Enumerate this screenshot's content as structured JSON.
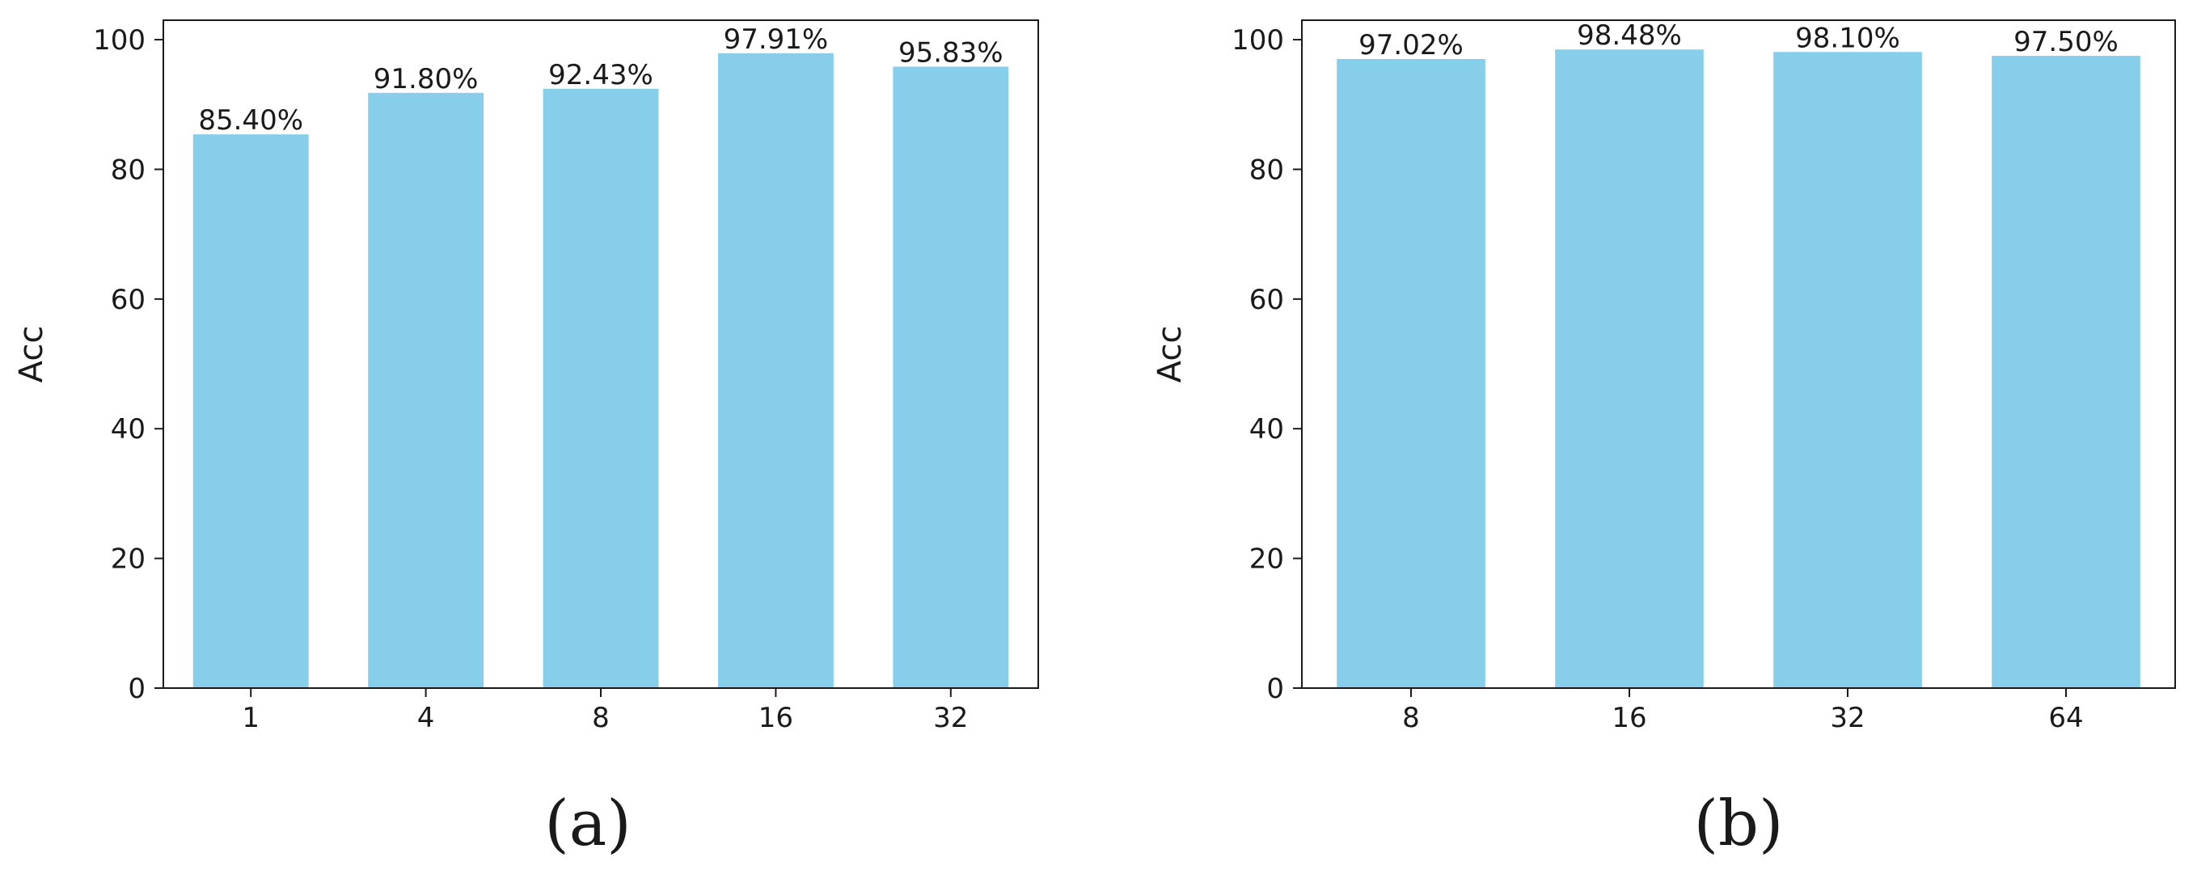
{
  "chart_data": [
    {
      "type": "bar",
      "panel_label": "(a)",
      "categories": [
        "1",
        "4",
        "8",
        "16",
        "32"
      ],
      "values": [
        85.4,
        91.8,
        92.43,
        97.91,
        95.83
      ],
      "value_labels": [
        "85.40%",
        "91.80%",
        "92.43%",
        "97.91%",
        "95.83%"
      ],
      "ylabel": "Acc",
      "ylim": [
        0,
        103
      ],
      "yticks": [
        0,
        20,
        40,
        60,
        80,
        100
      ],
      "grid": false,
      "bar_color": "#87CEEB"
    },
    {
      "type": "bar",
      "panel_label": "(b)",
      "categories": [
        "8",
        "16",
        "32",
        "64"
      ],
      "values": [
        97.02,
        98.48,
        98.1,
        97.5
      ],
      "value_labels": [
        "97.02%",
        "98.48%",
        "98.10%",
        "97.50%"
      ],
      "ylabel": "Acc",
      "ylim": [
        0,
        103
      ],
      "yticks": [
        0,
        20,
        40,
        60,
        80,
        100
      ],
      "grid": false,
      "bar_color": "#87CEEB"
    }
  ]
}
